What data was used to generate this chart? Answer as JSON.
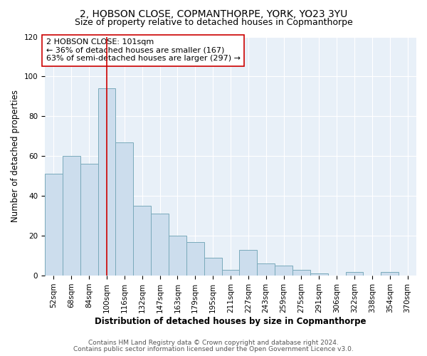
{
  "title_line1": "2, HOBSON CLOSE, COPMANTHORPE, YORK, YO23 3YU",
  "title_line2": "Size of property relative to detached houses in Copmanthorpe",
  "xlabel": "Distribution of detached houses by size in Copmanthorpe",
  "ylabel": "Number of detached properties",
  "bar_color": "#ccdded",
  "bar_edge_color": "#7aaabb",
  "background_color": "#e8f0f8",
  "fig_background": "#ffffff",
  "grid_color": "#ffffff",
  "categories": [
    "52sqm",
    "68sqm",
    "84sqm",
    "100sqm",
    "116sqm",
    "132sqm",
    "147sqm",
    "163sqm",
    "179sqm",
    "195sqm",
    "211sqm",
    "227sqm",
    "243sqm",
    "259sqm",
    "275sqm",
    "291sqm",
    "306sqm",
    "322sqm",
    "338sqm",
    "354sqm",
    "370sqm"
  ],
  "values": [
    51,
    60,
    56,
    94,
    67,
    35,
    31,
    20,
    17,
    9,
    3,
    13,
    6,
    5,
    3,
    1,
    0,
    2,
    0,
    2,
    0
  ],
  "bin_width": 16,
  "bin_starts": [
    44,
    60,
    76,
    92,
    108,
    124,
    140,
    156,
    172,
    188,
    204,
    220,
    236,
    252,
    268,
    284,
    300,
    316,
    332,
    348,
    364
  ],
  "bin_edges": [
    44,
    60,
    76,
    92,
    108,
    124,
    140,
    156,
    172,
    188,
    204,
    220,
    236,
    252,
    268,
    284,
    300,
    316,
    332,
    348,
    364,
    380
  ],
  "vline_x": 100,
  "vline_color": "#cc0000",
  "annotation_text": "2 HOBSON CLOSE: 101sqm\n← 36% of detached houses are smaller (167)\n63% of semi-detached houses are larger (297) →",
  "annotation_box_color": "#ffffff",
  "annotation_box_edge_color": "#cc0000",
  "ylim": [
    0,
    120
  ],
  "yticks": [
    0,
    20,
    40,
    60,
    80,
    100,
    120
  ],
  "footer_line1": "Contains HM Land Registry data © Crown copyright and database right 2024.",
  "footer_line2": "Contains public sector information licensed under the Open Government Licence v3.0.",
  "title_fontsize": 10,
  "subtitle_fontsize": 9,
  "label_fontsize": 8.5,
  "tick_fontsize": 7.5,
  "annot_fontsize": 8,
  "footer_fontsize": 6.5
}
